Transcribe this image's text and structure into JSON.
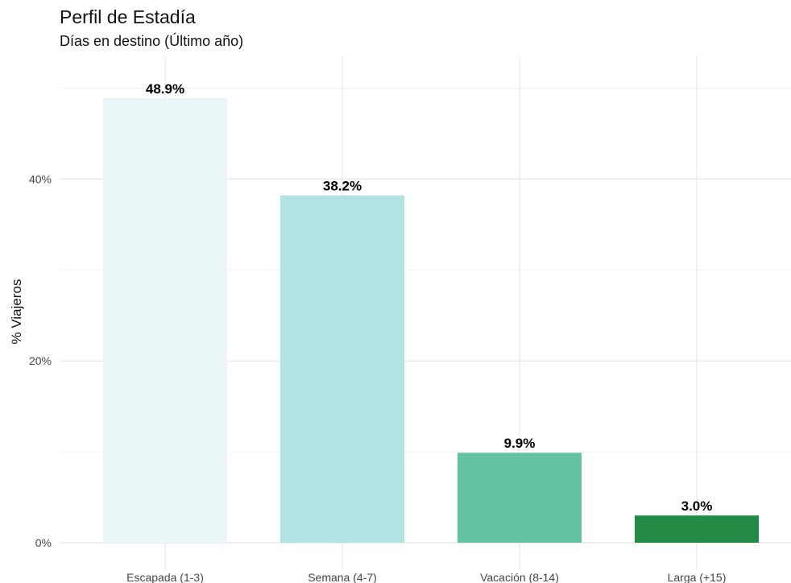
{
  "chart_data": {
    "type": "bar",
    "title": "Perfil de Estadía",
    "subtitle": "Días en destino (Último año)",
    "xlabel": "",
    "ylabel": "% Viajeros",
    "categories": [
      "Escapada (1-3)",
      "Semana (4-7)",
      "Vacación (8-14)",
      "Larga (+15)"
    ],
    "values": [
      48.9,
      38.2,
      9.9,
      3.0
    ],
    "data_labels": [
      "48.9%",
      "38.2%",
      "9.9%",
      "3.0%"
    ],
    "colors": [
      "#ebf6f8",
      "#b3e2e2",
      "#66c2a5",
      "#238b45"
    ],
    "ylim": [
      0,
      53.5
    ],
    "y_ticks": [
      0,
      20,
      40
    ],
    "y_tick_labels": [
      "0%",
      "20%",
      "40%"
    ],
    "grid": true,
    "legend": "none"
  }
}
